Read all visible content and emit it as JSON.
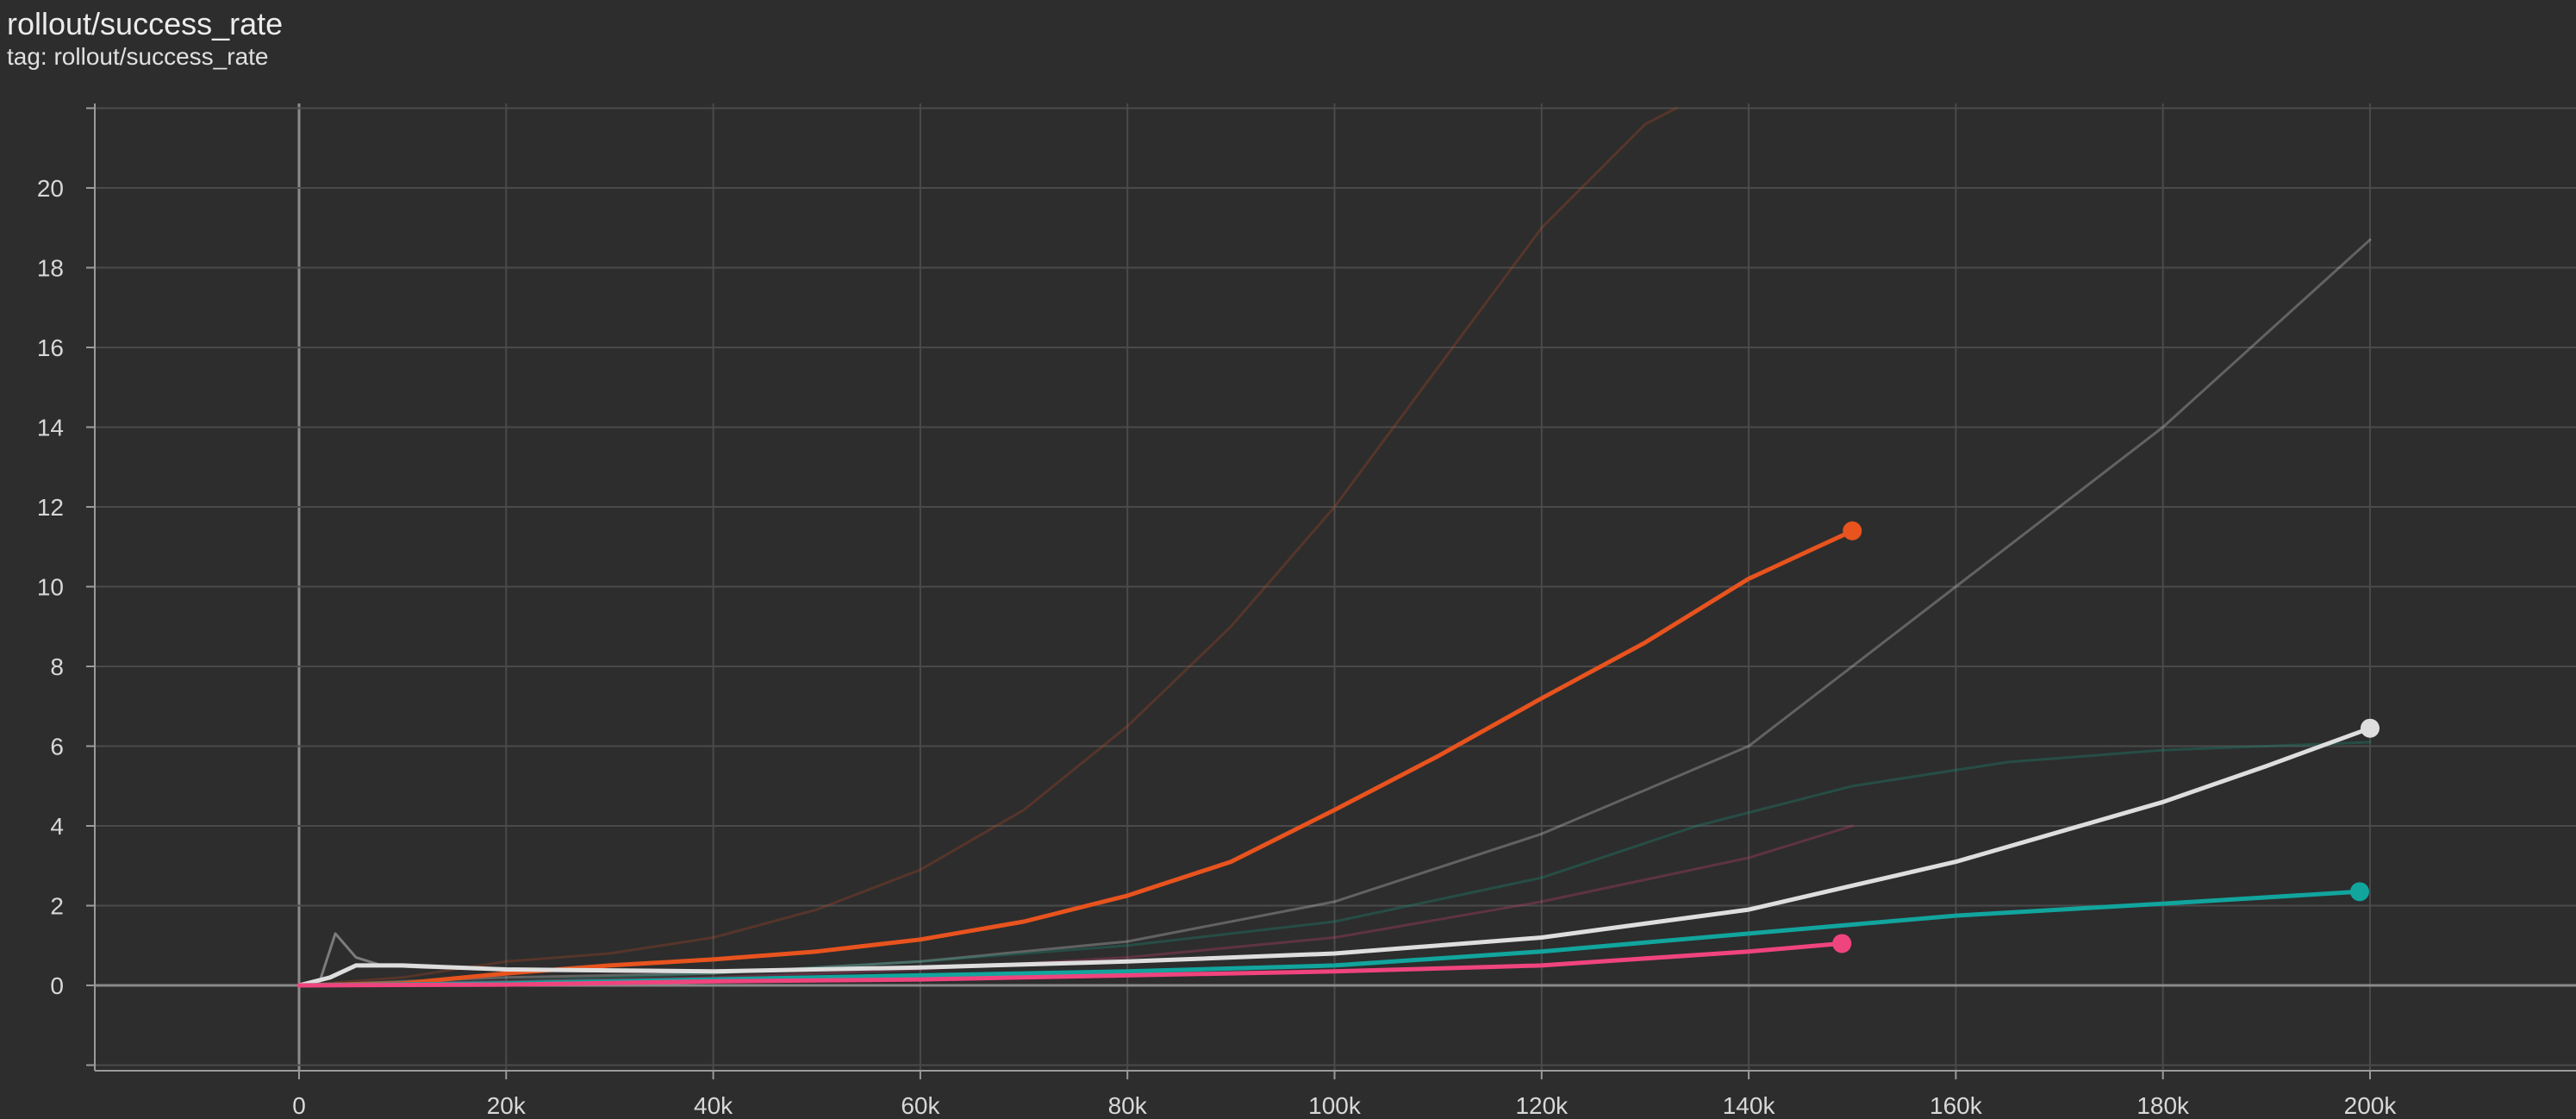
{
  "card": {
    "title": "rollout/success_rate",
    "tag": "tag: rollout/success_rate"
  },
  "chart_data": {
    "type": "line",
    "title": "rollout/success_rate",
    "xlabel": "",
    "ylabel": "",
    "xlim": [
      -20000,
      220000
    ],
    "ylim": [
      -4,
      22
    ],
    "grid": true,
    "x_ticks": [
      0,
      20000,
      40000,
      60000,
      80000,
      100000,
      120000,
      140000,
      160000,
      180000,
      200000
    ],
    "x_tick_labels": [
      "0",
      "20k",
      "40k",
      "60k",
      "80k",
      "100k",
      "120k",
      "140k",
      "160k",
      "180k",
      "200k"
    ],
    "y_ticks": [
      0,
      2,
      4,
      6,
      8,
      10,
      12,
      14,
      16,
      18,
      20
    ],
    "y_tick_labels": [
      "0",
      "2",
      "4",
      "6",
      "8",
      "10",
      "12",
      "14",
      "16",
      "18",
      "20"
    ],
    "colors": {
      "background": "#2d2d2d",
      "grid": "#4a4a4a",
      "zero_line": "#8a8a8a",
      "orange": "#e8531e",
      "white": "#dedede",
      "teal": "#11a59e",
      "pink": "#f0447e"
    },
    "series": [
      {
        "color": "#e8531e",
        "opacity": 0.22,
        "width": 3,
        "end_marker": false,
        "points": [
          [
            0,
            0
          ],
          [
            10000,
            0.2
          ],
          [
            20000,
            0.6
          ],
          [
            30000,
            0.8
          ],
          [
            40000,
            1.2
          ],
          [
            50000,
            1.9
          ],
          [
            60000,
            2.9
          ],
          [
            70000,
            4.4
          ],
          [
            80000,
            6.5
          ],
          [
            90000,
            9.0
          ],
          [
            100000,
            12.0
          ],
          [
            110000,
            15.5
          ],
          [
            120000,
            19.0
          ],
          [
            130000,
            21.6
          ],
          [
            133000,
            22.0
          ]
        ]
      },
      {
        "color": "#d5d5d5",
        "opacity": 0.32,
        "width": 3,
        "end_marker": false,
        "points": [
          [
            0,
            0
          ],
          [
            10000,
            0.1
          ],
          [
            20000,
            0.2
          ],
          [
            40000,
            0.3
          ],
          [
            60000,
            0.6
          ],
          [
            80000,
            1.1
          ],
          [
            100000,
            2.1
          ],
          [
            120000,
            3.8
          ],
          [
            140000,
            6.0
          ],
          [
            160000,
            10.0
          ],
          [
            180000,
            14.0
          ],
          [
            200000,
            18.7
          ]
        ]
      },
      {
        "color": "#1a8a72",
        "opacity": 0.35,
        "width": 3,
        "end_marker": false,
        "points": [
          [
            0,
            0
          ],
          [
            20000,
            0.1
          ],
          [
            40000,
            0.3
          ],
          [
            60000,
            0.6
          ],
          [
            80000,
            1.0
          ],
          [
            100000,
            1.6
          ],
          [
            120000,
            2.7
          ],
          [
            135000,
            4.0
          ],
          [
            150000,
            5.0
          ],
          [
            165000,
            5.6
          ],
          [
            180000,
            5.9
          ],
          [
            200000,
            6.1
          ]
        ]
      },
      {
        "color": "#d0437a",
        "opacity": 0.3,
        "width": 3,
        "end_marker": false,
        "points": [
          [
            0,
            0
          ],
          [
            20000,
            0.1
          ],
          [
            40000,
            0.2
          ],
          [
            60000,
            0.4
          ],
          [
            80000,
            0.7
          ],
          [
            100000,
            1.2
          ],
          [
            120000,
            2.1
          ],
          [
            140000,
            3.2
          ],
          [
            150000,
            4.0
          ]
        ]
      },
      {
        "color": "#bbbbbb",
        "opacity": 0.55,
        "width": 3,
        "end_marker": false,
        "points": [
          [
            0,
            0
          ],
          [
            2000,
            0.1
          ],
          [
            3500,
            1.3
          ],
          [
            5500,
            0.7
          ],
          [
            8000,
            0.5
          ],
          [
            12000,
            0.45
          ],
          [
            20000,
            0.4
          ],
          [
            30000,
            0.35
          ],
          [
            40000,
            0.35
          ]
        ]
      },
      {
        "color": "#e8531e",
        "opacity": 1,
        "width": 5,
        "end_marker": true,
        "points": [
          [
            0,
            0
          ],
          [
            10000,
            0.05
          ],
          [
            20000,
            0.3
          ],
          [
            30000,
            0.5
          ],
          [
            40000,
            0.65
          ],
          [
            50000,
            0.85
          ],
          [
            60000,
            1.15
          ],
          [
            70000,
            1.6
          ],
          [
            80000,
            2.25
          ],
          [
            90000,
            3.1
          ],
          [
            100000,
            4.4
          ],
          [
            110000,
            5.75
          ],
          [
            120000,
            7.2
          ],
          [
            130000,
            8.6
          ],
          [
            140000,
            10.2
          ],
          [
            145000,
            10.8
          ],
          [
            150000,
            11.4
          ]
        ]
      },
      {
        "color": "#dedede",
        "opacity": 1,
        "width": 5,
        "end_marker": true,
        "points": [
          [
            0,
            0
          ],
          [
            3000,
            0.2
          ],
          [
            5500,
            0.5
          ],
          [
            10000,
            0.5
          ],
          [
            20000,
            0.4
          ],
          [
            40000,
            0.35
          ],
          [
            60000,
            0.45
          ],
          [
            80000,
            0.6
          ],
          [
            100000,
            0.8
          ],
          [
            120000,
            1.2
          ],
          [
            140000,
            1.9
          ],
          [
            160000,
            3.1
          ],
          [
            180000,
            4.6
          ],
          [
            190000,
            5.5
          ],
          [
            200000,
            6.45
          ]
        ]
      },
      {
        "color": "#11a59e",
        "opacity": 1,
        "width": 5,
        "end_marker": true,
        "points": [
          [
            0,
            0
          ],
          [
            20000,
            0.05
          ],
          [
            40000,
            0.15
          ],
          [
            60000,
            0.25
          ],
          [
            80000,
            0.35
          ],
          [
            100000,
            0.5
          ],
          [
            120000,
            0.85
          ],
          [
            140000,
            1.3
          ],
          [
            160000,
            1.75
          ],
          [
            180000,
            2.05
          ],
          [
            199000,
            2.35
          ]
        ]
      },
      {
        "color": "#f0447e",
        "opacity": 1,
        "width": 5,
        "end_marker": true,
        "points": [
          [
            0,
            0
          ],
          [
            20000,
            0.02
          ],
          [
            40000,
            0.1
          ],
          [
            60000,
            0.15
          ],
          [
            80000,
            0.25
          ],
          [
            100000,
            0.35
          ],
          [
            120000,
            0.5
          ],
          [
            140000,
            0.85
          ],
          [
            149000,
            1.05
          ]
        ]
      }
    ]
  }
}
